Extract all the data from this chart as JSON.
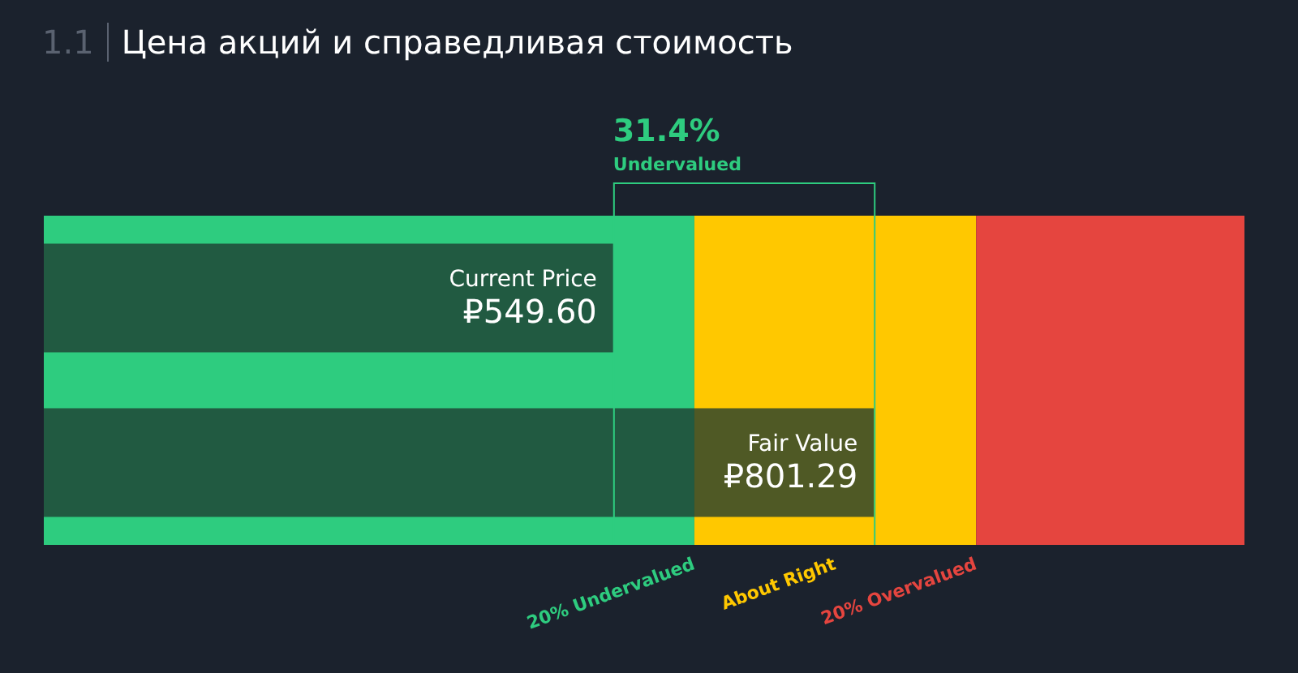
{
  "chart_data": {
    "type": "bar",
    "orientation": "horizontal",
    "title": "Цена акций и справедливая стоимость",
    "categories": [
      "Current Price",
      "Fair Value"
    ],
    "values": [
      549.6,
      801.29
    ],
    "value_labels": [
      "₽549.60",
      "₽801.29"
    ],
    "color": "#1e3a30",
    "xlim": [
      0,
      1159
    ],
    "tick_labels": false,
    "legend": false,
    "bands": [
      {
        "axis": "x",
        "from": 0,
        "to": 628,
        "label": "20% Undervalued",
        "color": "#2ecc7f"
      },
      {
        "axis": "x",
        "from": 628,
        "to": 900,
        "label": "About Right",
        "color": "#ffc800"
      },
      {
        "axis": "x",
        "from": 900,
        "to": 1159,
        "label": "20% Overvalued",
        "color": "#e5453f"
      }
    ],
    "annotations": [
      "1.1",
      "31.4%",
      "Undervalued"
    ]
  }
}
